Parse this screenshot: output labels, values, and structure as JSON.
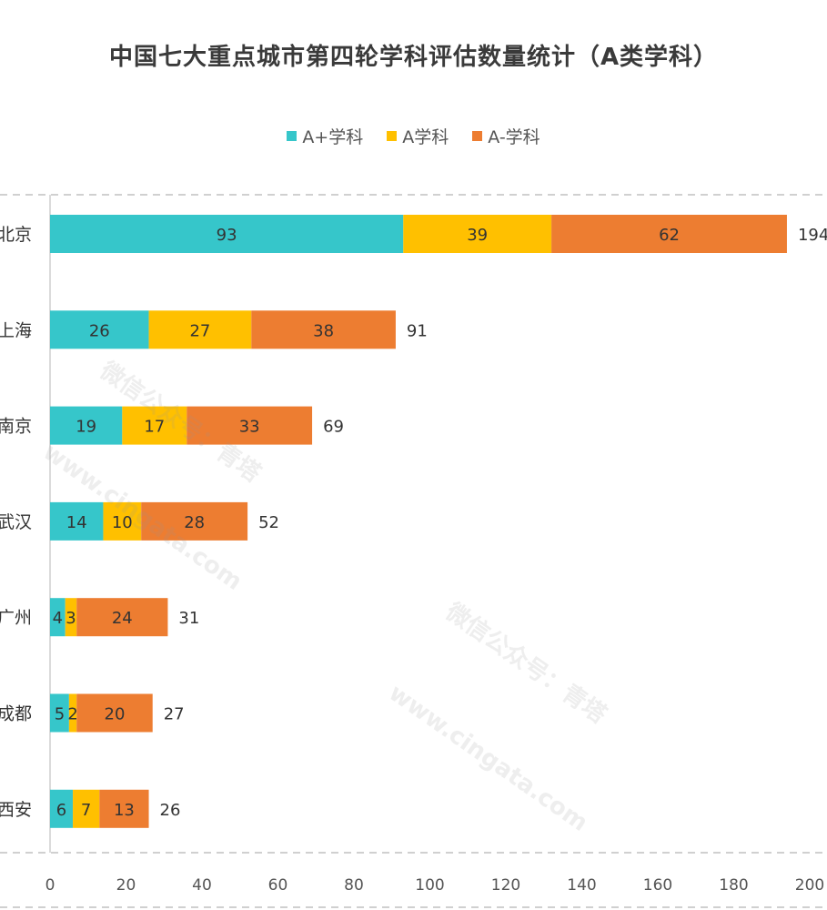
{
  "chart_data": {
    "type": "bar",
    "orientation": "horizontal",
    "stacked": true,
    "title": "中国七大重点城市第四轮学科评估数量统计（A类学科）",
    "legend_position": "top",
    "categories": [
      "北京",
      "上海",
      "南京",
      "武汉",
      "广州",
      "成都",
      "西安"
    ],
    "series": [
      {
        "name": "A+学科",
        "color": "#36C6CA",
        "values": [
          93,
          26,
          19,
          14,
          4,
          5,
          6
        ]
      },
      {
        "name": "A学科",
        "color": "#FFC000",
        "values": [
          39,
          27,
          17,
          10,
          3,
          2,
          7
        ]
      },
      {
        "name": "A-学科",
        "color": "#ED7D31",
        "values": [
          62,
          38,
          33,
          28,
          24,
          20,
          13
        ]
      }
    ],
    "totals": [
      194,
      91,
      69,
      52,
      31,
      27,
      26
    ],
    "xlim": [
      0,
      200
    ],
    "xticks": [
      0,
      20,
      40,
      60,
      80,
      100,
      120,
      140,
      160,
      180,
      200
    ],
    "grid": false
  },
  "watermark": {
    "line1": "微信公众号：青塔",
    "line2": "www.cingata.com"
  }
}
